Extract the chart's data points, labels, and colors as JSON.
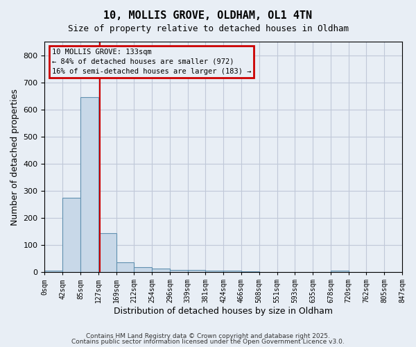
{
  "title_line1": "10, MOLLIS GROVE, OLDHAM, OL1 4TN",
  "title_line2": "Size of property relative to detached houses in Oldham",
  "xlabel": "Distribution of detached houses by size in Oldham",
  "ylabel": "Number of detached properties",
  "bin_labels": [
    "0sqm",
    "42sqm",
    "85sqm",
    "127sqm",
    "169sqm",
    "212sqm",
    "254sqm",
    "296sqm",
    "339sqm",
    "381sqm",
    "424sqm",
    "466sqm",
    "508sqm",
    "551sqm",
    "593sqm",
    "635sqm",
    "678sqm",
    "720sqm",
    "762sqm",
    "805sqm",
    "847sqm"
  ],
  "bar_heights": [
    5,
    275,
    645,
    143,
    35,
    18,
    12,
    8,
    8,
    5,
    5,
    2,
    0,
    0,
    0,
    0,
    5,
    0,
    0,
    0
  ],
  "bar_color": "#c8d8e8",
  "bar_edge_color": "#6090b0",
  "grid_color": "#c0c8d8",
  "background_color": "#e8eef5",
  "property_line_x": 133,
  "bin_width": 43,
  "annotation_text": "10 MOLLIS GROVE: 133sqm\n← 84% of detached houses are smaller (972)\n16% of semi-detached houses are larger (183) →",
  "annotation_box_color": "#cc0000",
  "ylim": [
    0,
    850
  ],
  "yticks": [
    0,
    100,
    200,
    300,
    400,
    500,
    600,
    700,
    800
  ],
  "footer_line1": "Contains HM Land Registry data © Crown copyright and database right 2025.",
  "footer_line2": "Contains public sector information licensed under the Open Government Licence v3.0."
}
